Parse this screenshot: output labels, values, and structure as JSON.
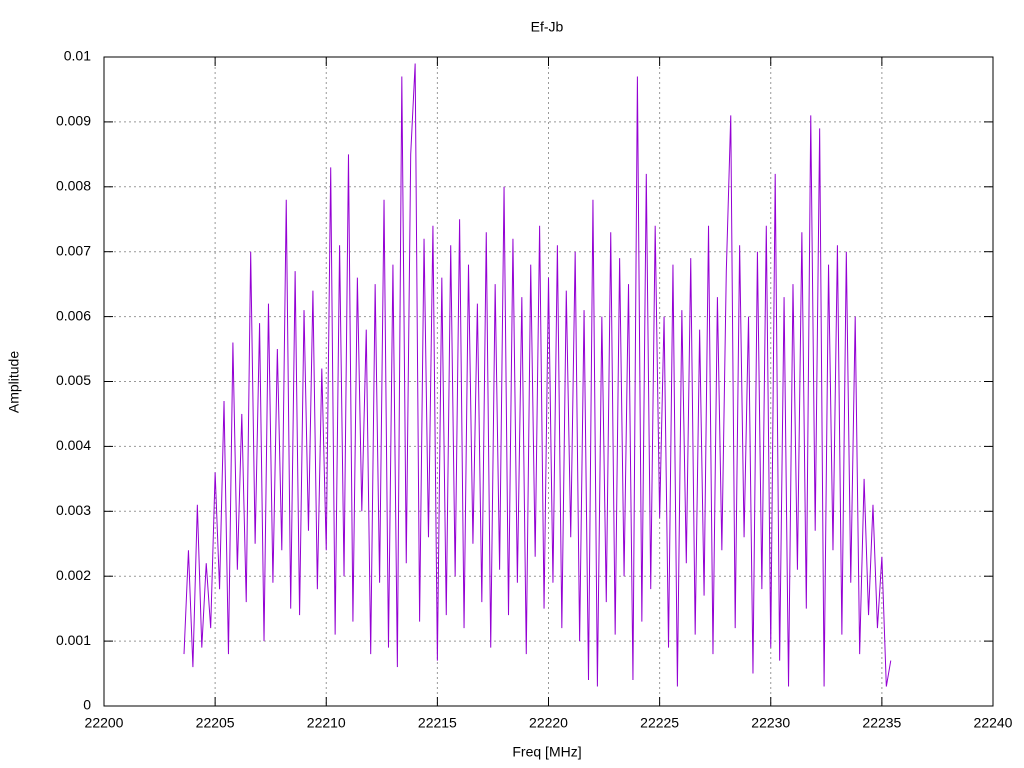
{
  "chart_data": {
    "type": "line",
    "title": "Ef-Jb",
    "xlabel": "Freq [MHz]",
    "ylabel": "Amplitude",
    "color": "#9400d3",
    "grid": true,
    "xlim": [
      22200,
      22240
    ],
    "xticks": [
      22200,
      22205,
      22210,
      22215,
      22220,
      22225,
      22230,
      22235,
      22240
    ],
    "ylim": [
      0,
      0.01
    ],
    "yticks": [
      0,
      0.001,
      0.002,
      0.003,
      0.004,
      0.005,
      0.006,
      0.007,
      0.008,
      0.009,
      0.01
    ],
    "x": [
      22203.6,
      22203.8,
      22204.0,
      22204.2,
      22204.4,
      22204.6,
      22204.8,
      22205.0,
      22205.2,
      22205.4,
      22205.6,
      22205.8,
      22206.0,
      22206.2,
      22206.4,
      22206.6,
      22206.8,
      22207.0,
      22207.2,
      22207.4,
      22207.6,
      22207.8,
      22208.0,
      22208.2,
      22208.4,
      22208.6,
      22208.8,
      22209.0,
      22209.2,
      22209.4,
      22209.6,
      22209.8,
      22210.0,
      22210.2,
      22210.4,
      22210.6,
      22210.8,
      22211.0,
      22211.2,
      22211.4,
      22211.6,
      22211.8,
      22212.0,
      22212.2,
      22212.4,
      22212.6,
      22212.8,
      22213.0,
      22213.2,
      22213.4,
      22213.6,
      22213.8,
      22214.0,
      22214.2,
      22214.4,
      22214.6,
      22214.8,
      22215.0,
      22215.2,
      22215.4,
      22215.6,
      22215.8,
      22216.0,
      22216.2,
      22216.4,
      22216.6,
      22216.8,
      22217.0,
      22217.2,
      22217.4,
      22217.6,
      22217.8,
      22218.0,
      22218.2,
      22218.4,
      22218.6,
      22218.8,
      22219.0,
      22219.2,
      22219.4,
      22219.6,
      22219.8,
      22220.0,
      22220.2,
      22220.4,
      22220.6,
      22220.8,
      22221.0,
      22221.2,
      22221.4,
      22221.6,
      22221.8,
      22222.0,
      22222.2,
      22222.4,
      22222.6,
      22222.8,
      22223.0,
      22223.2,
      22223.4,
      22223.6,
      22223.8,
      22224.0,
      22224.2,
      22224.4,
      22224.6,
      22224.8,
      22225.0,
      22225.2,
      22225.4,
      22225.6,
      22225.8,
      22226.0,
      22226.2,
      22226.4,
      22226.6,
      22226.8,
      22227.0,
      22227.2,
      22227.4,
      22227.6,
      22227.8,
      22228.0,
      22228.2,
      22228.4,
      22228.6,
      22228.8,
      22229.0,
      22229.2,
      22229.4,
      22229.6,
      22229.8,
      22230.0,
      22230.2,
      22230.4,
      22230.6,
      22230.8,
      22231.0,
      22231.2,
      22231.4,
      22231.6,
      22231.8,
      22232.0,
      22232.2,
      22232.4,
      22232.6,
      22232.8,
      22233.0,
      22233.2,
      22233.4,
      22233.6,
      22233.8,
      22234.0,
      22234.2,
      22234.4,
      22234.6,
      22234.8,
      22235.0,
      22235.2,
      22235.4
    ],
    "values": [
      0.0008,
      0.0024,
      0.0006,
      0.0031,
      0.0009,
      0.0022,
      0.0012,
      0.0036,
      0.0018,
      0.0047,
      0.0008,
      0.0056,
      0.0021,
      0.0045,
      0.0016,
      0.007,
      0.0025,
      0.0059,
      0.001,
      0.0062,
      0.0019,
      0.0055,
      0.0024,
      0.0078,
      0.0015,
      0.0067,
      0.0014,
      0.0061,
      0.0027,
      0.0064,
      0.0018,
      0.0052,
      0.0024,
      0.0083,
      0.0011,
      0.0071,
      0.002,
      0.0085,
      0.0013,
      0.0066,
      0.003,
      0.0058,
      0.0008,
      0.0065,
      0.0019,
      0.0078,
      0.0009,
      0.0068,
      0.0006,
      0.0097,
      0.0022,
      0.0085,
      0.0099,
      0.0013,
      0.0072,
      0.0026,
      0.0074,
      0.0007,
      0.0066,
      0.0014,
      0.0071,
      0.002,
      0.0075,
      0.0012,
      0.0068,
      0.0025,
      0.0062,
      0.0016,
      0.0073,
      0.0009,
      0.0065,
      0.0021,
      0.008,
      0.0014,
      0.0072,
      0.0019,
      0.0063,
      0.0008,
      0.0068,
      0.0023,
      0.0074,
      0.0015,
      0.0066,
      0.0019,
      0.0071,
      0.0012,
      0.0064,
      0.0026,
      0.007,
      0.001,
      0.0061,
      0.0004,
      0.0078,
      0.0003,
      0.006,
      0.0016,
      0.0073,
      0.0011,
      0.0069,
      0.002,
      0.0065,
      0.0004,
      0.0097,
      0.0013,
      0.0082,
      0.0018,
      0.0074,
      0.0029,
      0.006,
      0.0009,
      0.0068,
      0.0003,
      0.0061,
      0.0022,
      0.0069,
      0.0011,
      0.0058,
      0.0017,
      0.0074,
      0.0008,
      0.0063,
      0.0024,
      0.0067,
      0.0091,
      0.0012,
      0.0071,
      0.0026,
      0.006,
      0.0005,
      0.007,
      0.0018,
      0.0074,
      0.0009,
      0.0082,
      0.0007,
      0.0063,
      0.0003,
      0.0065,
      0.0021,
      0.0073,
      0.0015,
      0.0091,
      0.0027,
      0.0089,
      0.0003,
      0.0068,
      0.0024,
      0.0071,
      0.0011,
      0.007,
      0.0019,
      0.006,
      0.0008,
      0.0035,
      0.0014,
      0.0031,
      0.0012,
      0.0023,
      0.0003,
      0.0007
    ]
  }
}
